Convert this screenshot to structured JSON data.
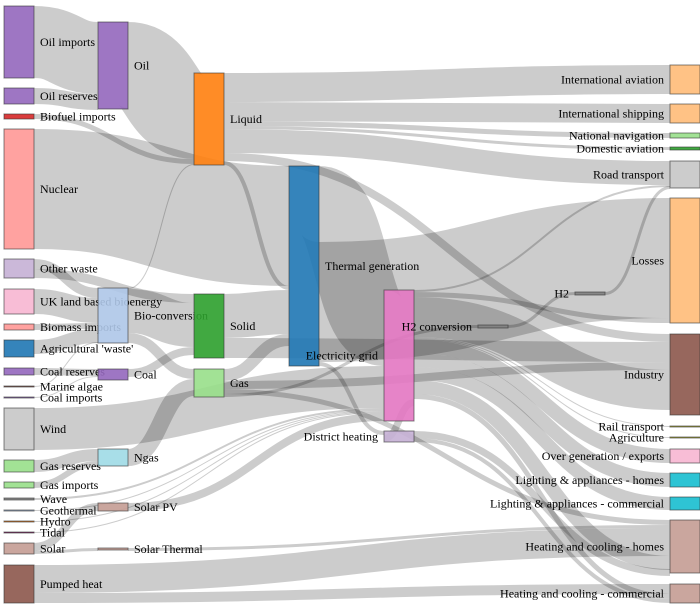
{
  "nodes": [
    {
      "name": "Oil imports",
      "color": "#9467bd"
    },
    {
      "name": "Oil reserves",
      "color": "#9467bd"
    },
    {
      "name": "Biofuel imports",
      "color": "#d62728"
    },
    {
      "name": "Nuclear",
      "color": "#ff9896"
    },
    {
      "name": "Other waste",
      "color": "#c5b0d5"
    },
    {
      "name": "UK land based bioenergy",
      "color": "#f7b6d2"
    },
    {
      "name": "Biomass imports",
      "color": "#ff9896"
    },
    {
      "name": "Agricultural 'waste'",
      "color": "#1f77b4"
    },
    {
      "name": "Coal reserves",
      "color": "#9467bd"
    },
    {
      "name": "Marine algae",
      "color": "#8c564b"
    },
    {
      "name": "Coal imports",
      "color": "#9467bd"
    },
    {
      "name": "Wind",
      "color": "#c7c7c7"
    },
    {
      "name": "Gas reserves",
      "color": "#98df8a"
    },
    {
      "name": "Gas imports",
      "color": "#98df8a"
    },
    {
      "name": "Wave",
      "color": "#7f7f7f"
    },
    {
      "name": "Geothermal",
      "color": "#aec7e8"
    },
    {
      "name": "Hydro",
      "color": "#ff7f0e"
    },
    {
      "name": "Tidal",
      "color": "#8c1a6a"
    },
    {
      "name": "Solar",
      "color": "#c49c94"
    },
    {
      "name": "Pumped heat",
      "color": "#8c564b"
    },
    {
      "name": "Oil",
      "color": "#9467bd"
    },
    {
      "name": "Bio-conversion",
      "color": "#aec7e8"
    },
    {
      "name": "Coal",
      "color": "#9467bd"
    },
    {
      "name": "Ngas",
      "color": "#9edae5"
    },
    {
      "name": "Solar PV",
      "color": "#c49c94"
    },
    {
      "name": "Solar Thermal",
      "color": "#c49c94"
    },
    {
      "name": "Liquid",
      "color": "#ff7f0e"
    },
    {
      "name": "Solid",
      "color": "#2ca02c"
    },
    {
      "name": "Gas",
      "color": "#98df8a"
    },
    {
      "name": "Thermal generation",
      "color": "#1f77b4"
    },
    {
      "name": "Electricity grid",
      "color": "#e377c2"
    },
    {
      "name": "District heating",
      "color": "#c5b0d5"
    },
    {
      "name": "H2 conversion",
      "color": "#7f7f7f"
    },
    {
      "name": "H2",
      "color": "#7f7f7f"
    },
    {
      "name": "International aviation",
      "color": "#ffbb78"
    },
    {
      "name": "International shipping",
      "color": "#ffbb78"
    },
    {
      "name": "National navigation",
      "color": "#98df8a"
    },
    {
      "name": "Domestic aviation",
      "color": "#2ca02c"
    },
    {
      "name": "Road transport",
      "color": "#c7c7c7"
    },
    {
      "name": "Losses",
      "color": "#ffbb78"
    },
    {
      "name": "Industry",
      "color": "#8c564b"
    },
    {
      "name": "Rail transport",
      "color": "#bcbd22"
    },
    {
      "name": "Agriculture",
      "color": "#bcbd22"
    },
    {
      "name": "Over generation / exports",
      "color": "#f7b6d2"
    },
    {
      "name": "Lighting & appliances - homes",
      "color": "#17becf"
    },
    {
      "name": "Lighting & appliances - commercial",
      "color": "#17becf"
    },
    {
      "name": "Heating and cooling - homes",
      "color": "#c49c94"
    },
    {
      "name": "Heating and cooling - commercial",
      "color": "#c49c94"
    }
  ],
  "links": [
    [
      "Oil imports",
      "Oil",
      72
    ],
    [
      "Oil reserves",
      "Oil",
      16
    ],
    [
      "Oil",
      "Liquid",
      86
    ],
    [
      "Biofuel imports",
      "Liquid",
      5
    ],
    [
      "Nuclear",
      "Thermal generation",
      120
    ],
    [
      "Other waste",
      "Bio-conversion",
      10
    ],
    [
      "Other waste",
      "Solid",
      9
    ],
    [
      "UK land based bioenergy",
      "Bio-conversion",
      25
    ],
    [
      "Biomass imports",
      "Bio-conversion",
      6
    ],
    [
      "Agricultural 'waste'",
      "Bio-conversion",
      14
    ],
    [
      "Marine algae",
      "Bio-conversion",
      1
    ],
    [
      "Coal reserves",
      "Coal",
      7
    ],
    [
      "Coal imports",
      "Coal",
      1
    ],
    [
      "Gas reserves",
      "Ngas",
      12
    ],
    [
      "Gas imports",
      "Ngas",
      6
    ],
    [
      "Solar",
      "Solar PV",
      8
    ],
    [
      "Solar",
      "Solar Thermal",
      3
    ],
    [
      "Bio-conversion",
      "Liquid",
      1
    ],
    [
      "Bio-conversion",
      "Solid",
      44
    ],
    [
      "Bio-conversion",
      "Gas",
      10
    ],
    [
      "Coal",
      "Solid",
      8
    ],
    [
      "Ngas",
      "Gas",
      17
    ],
    [
      "Liquid",
      "International aviation",
      29
    ],
    [
      "Liquid",
      "International shipping",
      19
    ],
    [
      "Liquid",
      "National navigation",
      5
    ],
    [
      "Liquid",
      "Domestic aviation",
      3
    ],
    [
      "Liquid",
      "Road transport",
      24
    ],
    [
      "Liquid",
      "Industry",
      8
    ],
    [
      "Liquid",
      "Thermal generation",
      4
    ],
    [
      "Solid",
      "Thermal generation",
      44
    ],
    [
      "Solid",
      "Industry",
      20
    ],
    [
      "Gas",
      "Thermal generation",
      12
    ],
    [
      "Gas",
      "Industry",
      8
    ],
    [
      "Gas",
      "Heating and cooling - homes",
      5
    ],
    [
      "Gas",
      "H2 conversion",
      3
    ],
    [
      "Thermal generation",
      "Electricity grid",
      76
    ],
    [
      "Thermal generation",
      "Losses",
      120
    ],
    [
      "Thermal generation",
      "District heating",
      4
    ],
    [
      "Wind",
      "Electricity grid",
      42
    ],
    [
      "Wave",
      "Electricity grid",
      2
    ],
    [
      "Geothermal",
      "Electricity grid",
      1
    ],
    [
      "Hydro",
      "Electricity grid",
      1
    ],
    [
      "Tidal",
      "Electricity grid",
      1
    ],
    [
      "Solar PV",
      "Electricity grid",
      8
    ],
    [
      "Solar Thermal",
      "Heating and cooling - homes",
      3
    ],
    [
      "Pumped heat",
      "Heating and cooling - homes",
      28
    ],
    [
      "Pumped heat",
      "Heating and cooling - commercial",
      10
    ],
    [
      "Electricity grid",
      "Road transport",
      2
    ],
    [
      "Electricity grid",
      "Losses",
      5
    ],
    [
      "Electricity grid",
      "Industry",
      40
    ],
    [
      "Electricity grid",
      "Rail transport",
      1
    ],
    [
      "Electricity grid",
      "Agriculture",
      1
    ],
    [
      "Electricity grid",
      "Over generation / exports",
      14
    ],
    [
      "Electricity grid",
      "Lighting & appliances - homes",
      14
    ],
    [
      "Electricity grid",
      "Lighting & appliances - commercial",
      13
    ],
    [
      "Electricity grid",
      "Heating and cooling - homes",
      14
    ],
    [
      "Electricity grid",
      "Heating and cooling - commercial",
      5
    ],
    [
      "Electricity grid",
      "District heating",
      7
    ],
    [
      "District heating",
      "Heating and cooling - homes",
      7
    ],
    [
      "District heating",
      "Heating and cooling - commercial",
      4
    ],
    [
      "H2 conversion",
      "H2",
      3
    ],
    [
      "H2",
      "Road transport",
      3
    ]
  ]
}
